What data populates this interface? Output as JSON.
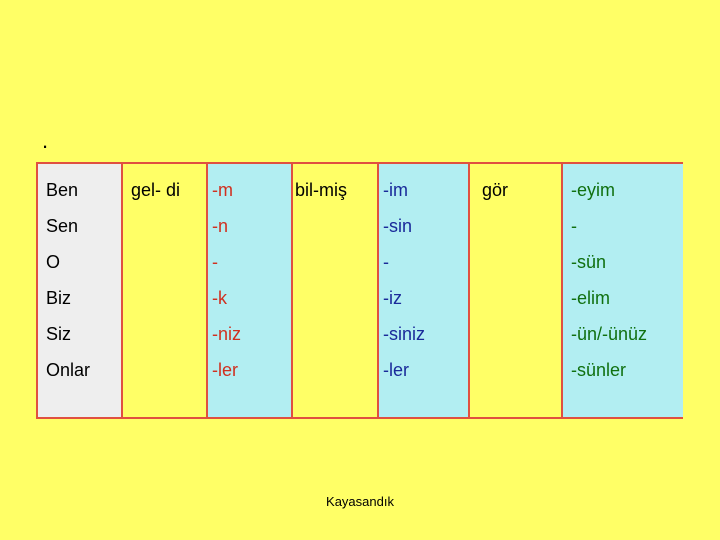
{
  "marker": ".",
  "pronouns": [
    "Ben",
    "Sen",
    "O",
    "Biz",
    "Siz",
    "Onlar"
  ],
  "stems": {
    "gel": "gel- di",
    "bil": "bil-miş",
    "gor": "gör"
  },
  "suffixes_di": [
    "-m",
    "-n",
    "-",
    "-k",
    "-niz",
    "-ler"
  ],
  "suffixes_mis": [
    "-im",
    "-sin",
    "-",
    "-iz",
    "-siniz",
    "-ler"
  ],
  "suffixes_gor": [
    "-eyim",
    "-",
    "-sün",
    "-elim",
    "-ün/-ünüz",
    "-sünler"
  ],
  "footer": "Kayasandık"
}
